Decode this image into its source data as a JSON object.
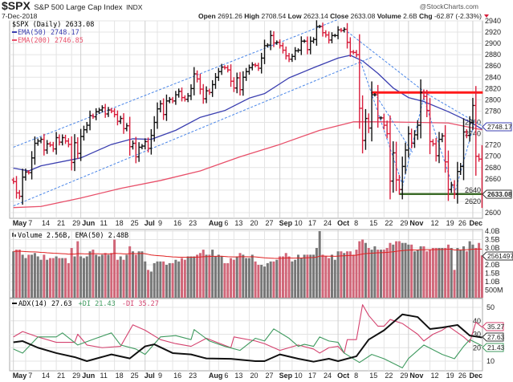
{
  "header": {
    "symbol": "$SPX",
    "name": "S&P 500 Large Cap Index",
    "exchange": "INDX",
    "date": "7-Dec-2018",
    "brand": "@StockCharts.com",
    "ohlc": [
      {
        "label": "Open",
        "value": "2691.26"
      },
      {
        "label": "High",
        "value": "2708.54"
      },
      {
        "label": "Low",
        "value": "2623.14"
      },
      {
        "label": "Close",
        "value": "2633.08"
      },
      {
        "label": "Volume",
        "value": "2.6B"
      },
      {
        "label": "Chg",
        "value": "-62.87 (-2.33%)"
      }
    ],
    "chg_icon": "down-triangle-icon"
  },
  "legend": {
    "price": "$SPX (Daily) 2633.08",
    "ema50": "EMA(50) 2748.17",
    "ema200": "EMA(200) 2746.85",
    "volume": "Volume 2.56B, EMA(50) 2.48B",
    "adx": "ADX(14) 27.63",
    "pdi": "+DI 21.43",
    "mdi": "-DI 35.27"
  },
  "markers": {
    "ema50": "2748.17",
    "close": "2633.08",
    "volume_ema": "2561497",
    "mdi": "35.27",
    "adx": "27.63",
    "pdi": "21.43"
  },
  "colors": {
    "up_bar": "#111111",
    "down_bar": "#d81e3c",
    "ema50": "#3b3fb0",
    "ema200": "#e8506a",
    "trendline": "#4a86e8",
    "resistance": "#ff1a1a",
    "support": "#3d6b2a",
    "vol_up": "#777777",
    "vol_down": "#d06678",
    "adx": "#111111",
    "pdi": "#3f9a5f",
    "mdi": "#d4426e"
  },
  "chart_data": {
    "type": "ohlc",
    "trading_days": {
      "2018-05": [
        1,
        2,
        3,
        4,
        7,
        8,
        9,
        10,
        11,
        14,
        15,
        16,
        17,
        18,
        21,
        22,
        23,
        24,
        25,
        29,
        30,
        31
      ],
      "2018-06": [
        1,
        4,
        5,
        6,
        7,
        8,
        11,
        12,
        13,
        14,
        15,
        18,
        19,
        20,
        21,
        22,
        25,
        26,
        27,
        28,
        29
      ],
      "2018-07": [
        2,
        3,
        5,
        6,
        9,
        10,
        11,
        12,
        13,
        16,
        17,
        18,
        19,
        20,
        23,
        24,
        25,
        26,
        27,
        30,
        31
      ],
      "2018-08": [
        1,
        2,
        3,
        6,
        7,
        8,
        9,
        10,
        13,
        14,
        15,
        16,
        17,
        20,
        21,
        22,
        23,
        24,
        27,
        28,
        29,
        30,
        31
      ],
      "2018-09": [
        4,
        5,
        6,
        7,
        10,
        11,
        12,
        13,
        14,
        17,
        18,
        19,
        20,
        21,
        24,
        25,
        26,
        27,
        28
      ],
      "2018-10": [
        1,
        2,
        3,
        4,
        5,
        8,
        9,
        10,
        11,
        12,
        15,
        16,
        17,
        18,
        19,
        22,
        23,
        24,
        25,
        26,
        29,
        30,
        31
      ],
      "2018-11": [
        1,
        2,
        5,
        6,
        7,
        8,
        9,
        12,
        13,
        14,
        15,
        16,
        19,
        20,
        21,
        23,
        26,
        27,
        28,
        29,
        30
      ],
      "2018-12": [
        3,
        4,
        6,
        7
      ]
    },
    "close": [
      2655,
      2635,
      2629,
      2663,
      2672,
      2671,
      2697,
      2723,
      2727,
      2730,
      2711,
      2722,
      2720,
      2713,
      2733,
      2725,
      2733,
      2727,
      2721,
      2689,
      2724,
      2705,
      2735,
      2747,
      2755,
      2772,
      2770,
      2779,
      2782,
      2786,
      2775,
      2782,
      2780,
      2774,
      2762,
      2767,
      2749,
      2754,
      2717,
      2723,
      2699,
      2716,
      2718,
      2726,
      2714,
      2737,
      2760,
      2784,
      2793,
      2774,
      2798,
      2801,
      2798,
      2809,
      2815,
      2804,
      2801,
      2807,
      2820,
      2846,
      2837,
      2819,
      2802,
      2816,
      2813,
      2827,
      2840,
      2850,
      2858,
      2857,
      2853,
      2833,
      2821,
      2839,
      2818,
      2840,
      2850,
      2857,
      2862,
      2861,
      2856,
      2874,
      2896,
      2897,
      2914,
      2901,
      2902,
      2896,
      2888,
      2878,
      2872,
      2877,
      2887,
      2888,
      2904,
      2904,
      2889,
      2904,
      2907,
      2930,
      2930,
      2919,
      2915,
      2906,
      2914,
      2914,
      2924,
      2923,
      2925,
      2902,
      2885,
      2884,
      2880,
      2785,
      2728,
      2767,
      2750,
      2809,
      2809,
      2768,
      2768,
      2755,
      2740,
      2656,
      2706,
      2658,
      2641,
      2682,
      2711,
      2740,
      2723,
      2738,
      2755,
      2813,
      2806,
      2781,
      2726,
      2722,
      2701,
      2730,
      2736,
      2690,
      2641,
      2649,
      2633,
      2673,
      2682,
      2743,
      2737,
      2760,
      2790,
      2700,
      2695,
      2633.08
    ],
    "volume_b": [
      2.8,
      2.9,
      2.9,
      2.6,
      2.4,
      2.6,
      2.6,
      2.7,
      2.5,
      2.3,
      2.6,
      2.3,
      2.4,
      2.4,
      2.5,
      2.4,
      2.4,
      2.4,
      2.1,
      3.0,
      2.5,
      3.4,
      2.5,
      2.4,
      2.5,
      2.8,
      2.9,
      2.6,
      2.5,
      2.6,
      2.7,
      2.6,
      2.7,
      3.5,
      2.3,
      2.5,
      2.3,
      2.6,
      3.1,
      2.8,
      2.6,
      2.8,
      2.8,
      2.2,
      1.7,
      1.6,
      2.1,
      2.2,
      2.2,
      2.2,
      2.0,
      2.1,
      2.1,
      2.3,
      2.2,
      2.4,
      2.3,
      2.5,
      2.5,
      2.5,
      2.6,
      2.7,
      2.9,
      2.6,
      2.6,
      2.9,
      2.5,
      2.6,
      2.5,
      2.1,
      2.1,
      2.4,
      2.3,
      2.5,
      2.7,
      2.6,
      2.4,
      2.4,
      2.6,
      2.2,
      2.0,
      2.0,
      1.9,
      2.1,
      2.2,
      2.2,
      2.3,
      2.5,
      2.5,
      2.7,
      2.5,
      2.2,
      2.3,
      2.6,
      2.4,
      2.6,
      2.6,
      2.6,
      2.6,
      3.0,
      4.0,
      2.6,
      2.5,
      2.4,
      2.6,
      2.3,
      2.8,
      2.8,
      2.7,
      2.8,
      2.8,
      2.6,
      2.9,
      3.4,
      3.5,
      3.3,
      3.0,
      2.9,
      3.1,
      2.9,
      2.9,
      2.9,
      3.0,
      3.3,
      3.2,
      3.4,
      3.4,
      3.3,
      3.3,
      3.2,
      3.2,
      2.8,
      2.9,
      3.1,
      3.1,
      2.8,
      2.9,
      3.0,
      3.0,
      3.0,
      3.0,
      3.0,
      3.2,
      3.0,
      1.7,
      3.0,
      2.9,
      3.1,
      2.8,
      3.4,
      3.2,
      3.0,
      3.3,
      2.56
    ],
    "ema50": [
      [
        "2018-05-01",
        2679
      ],
      [
        "2018-05-08",
        2674
      ],
      [
        "2018-05-14",
        2683
      ],
      [
        "2018-06-01",
        2697
      ],
      [
        "2018-06-15",
        2721
      ],
      [
        "2018-06-26",
        2731
      ],
      [
        "2018-07-05",
        2730
      ],
      [
        "2018-07-17",
        2746
      ],
      [
        "2018-07-27",
        2769
      ],
      [
        "2018-08-08",
        2781
      ],
      [
        "2018-08-20",
        2803
      ],
      [
        "2018-08-27",
        2811
      ],
      [
        "2018-09-07",
        2839
      ],
      [
        "2018-09-19",
        2857
      ],
      [
        "2018-10-01",
        2874
      ],
      [
        "2018-10-05",
        2879
      ],
      [
        "2018-10-11",
        2869
      ],
      [
        "2018-10-18",
        2847
      ],
      [
        "2018-10-25",
        2821
      ],
      [
        "2018-11-01",
        2804
      ],
      [
        "2018-11-08",
        2797
      ],
      [
        "2018-11-20",
        2779
      ],
      [
        "2018-11-30",
        2761
      ],
      [
        "2018-12-07",
        2748.17
      ]
    ],
    "ema200": [
      [
        "2018-05-01",
        2609
      ],
      [
        "2018-05-14",
        2611
      ],
      [
        "2018-06-01",
        2626
      ],
      [
        "2018-06-20",
        2643
      ],
      [
        "2018-07-10",
        2657
      ],
      [
        "2018-07-27",
        2674
      ],
      [
        "2018-08-15",
        2699
      ],
      [
        "2018-09-04",
        2721
      ],
      [
        "2018-09-21",
        2746
      ],
      [
        "2018-10-08",
        2761
      ],
      [
        "2018-10-22",
        2761
      ],
      [
        "2018-11-06",
        2760
      ],
      [
        "2018-11-20",
        2759
      ],
      [
        "2018-12-07",
        2746.85
      ]
    ],
    "trendlines": [
      {
        "kind": "channel",
        "from": [
          "2018-05-01",
          2716
        ],
        "to": [
          "2018-10-01",
          2943
        ]
      },
      {
        "kind": "channel",
        "from": [
          "2018-05-01",
          2612
        ],
        "to": [
          "2018-10-16",
          2876
        ]
      },
      {
        "kind": "channel",
        "from": [
          "2018-10-04",
          2921
        ],
        "to": [
          "2018-11-08",
          2814
        ]
      },
      {
        "kind": "channel",
        "from": [
          "2018-11-08",
          2814
        ],
        "to": [
          "2018-12-07",
          2753
        ]
      },
      {
        "kind": "channel",
        "from": [
          "2018-10-10",
          2874
        ],
        "to": [
          "2018-10-30",
          2646
        ]
      },
      {
        "kind": "channel",
        "from": [
          "2018-10-30",
          2646
        ],
        "to": [
          "2018-11-08",
          2811
        ]
      },
      {
        "kind": "channel",
        "from": [
          "2018-11-08",
          2803
        ],
        "to": [
          "2018-11-23",
          2633
        ]
      },
      {
        "kind": "channel",
        "from": [
          "2018-11-23",
          2633
        ],
        "to": [
          "2018-12-03",
          2754
        ]
      },
      {
        "kind": "channel",
        "from": [
          "2018-10-17",
          2811
        ],
        "to": [
          "2018-11-02",
          2707
        ]
      },
      {
        "kind": "resistance",
        "from": [
          "2018-10-16",
          2813
        ],
        "to": [
          "2018-12-07",
          2813
        ]
      },
      {
        "kind": "support",
        "from": [
          "2018-10-29",
          2633
        ],
        "to": [
          "2018-12-07",
          2633
        ]
      }
    ],
    "adx": [
      [
        "2018-05-01",
        24
      ],
      [
        "2018-05-04",
        24.9
      ],
      [
        "2018-05-11",
        20
      ],
      [
        "2018-05-21",
        16
      ],
      [
        "2018-05-30",
        13
      ],
      [
        "2018-06-05",
        10
      ],
      [
        "2018-06-15",
        15
      ],
      [
        "2018-06-25",
        12
      ],
      [
        "2018-07-02",
        21
      ],
      [
        "2018-07-06",
        22.5
      ],
      [
        "2018-07-16",
        16
      ],
      [
        "2018-07-24",
        15
      ],
      [
        "2018-07-31",
        12
      ],
      [
        "2018-08-10",
        11.7
      ],
      [
        "2018-08-22",
        10
      ],
      [
        "2018-08-27",
        10
      ],
      [
        "2018-09-04",
        15
      ],
      [
        "2018-09-12",
        11.8
      ],
      [
        "2018-09-19",
        9.6
      ],
      [
        "2018-09-26",
        11.8
      ],
      [
        "2018-10-01",
        10
      ],
      [
        "2018-10-09",
        13.6
      ],
      [
        "2018-10-15",
        26
      ],
      [
        "2018-10-22",
        32.9
      ],
      [
        "2018-10-30",
        44.8
      ],
      [
        "2018-11-06",
        42.8
      ],
      [
        "2018-11-12",
        33.9
      ],
      [
        "2018-11-16",
        35
      ],
      [
        "2018-11-26",
        36.9
      ],
      [
        "2018-11-30",
        29
      ],
      [
        "2018-12-07",
        27.63
      ]
    ],
    "pdi": [
      [
        "2018-05-01",
        19
      ],
      [
        "2018-05-04",
        16
      ],
      [
        "2018-05-11",
        28
      ],
      [
        "2018-05-21",
        28
      ],
      [
        "2018-05-23",
        31
      ],
      [
        "2018-05-31",
        22
      ],
      [
        "2018-06-08",
        27
      ],
      [
        "2018-06-15",
        31
      ],
      [
        "2018-06-20",
        22
      ],
      [
        "2018-06-27",
        19
      ],
      [
        "2018-07-02",
        15
      ],
      [
        "2018-07-10",
        28
      ],
      [
        "2018-07-17",
        29
      ],
      [
        "2018-07-24",
        26
      ],
      [
        "2018-07-25",
        33.5
      ],
      [
        "2018-08-01",
        25
      ],
      [
        "2018-08-08",
        21
      ],
      [
        "2018-08-15",
        18
      ],
      [
        "2018-08-22",
        27
      ],
      [
        "2018-08-27",
        25
      ],
      [
        "2018-08-30",
        34
      ],
      [
        "2018-09-07",
        27
      ],
      [
        "2018-09-12",
        21
      ],
      [
        "2018-09-14",
        22.5
      ],
      [
        "2018-09-19",
        21
      ],
      [
        "2018-09-21",
        28
      ],
      [
        "2018-09-26",
        25
      ],
      [
        "2018-10-01",
        24
      ],
      [
        "2018-10-03",
        16
      ],
      [
        "2018-10-10",
        9
      ],
      [
        "2018-10-16",
        15
      ],
      [
        "2018-10-22",
        11.8
      ],
      [
        "2018-10-30",
        5
      ],
      [
        "2018-11-01",
        12
      ],
      [
        "2018-11-08",
        22
      ],
      [
        "2018-11-16",
        15
      ],
      [
        "2018-11-23",
        11.8
      ],
      [
        "2018-11-28",
        21
      ],
      [
        "2018-11-30",
        26
      ],
      [
        "2018-12-07",
        21.43
      ]
    ],
    "mdi": [
      [
        "2018-05-01",
        28
      ],
      [
        "2018-05-04",
        32
      ],
      [
        "2018-05-11",
        28
      ],
      [
        "2018-05-21",
        24
      ],
      [
        "2018-05-30",
        24
      ],
      [
        "2018-05-31",
        30
      ],
      [
        "2018-06-05",
        22
      ],
      [
        "2018-06-12",
        20
      ],
      [
        "2018-06-20",
        21
      ],
      [
        "2018-06-26",
        37
      ],
      [
        "2018-07-02",
        33
      ],
      [
        "2018-07-10",
        26
      ],
      [
        "2018-07-17",
        23
      ],
      [
        "2018-07-24",
        21
      ],
      [
        "2018-07-31",
        27
      ],
      [
        "2018-08-10",
        20
      ],
      [
        "2018-08-13",
        28
      ],
      [
        "2018-08-22",
        25
      ],
      [
        "2018-08-27",
        23
      ],
      [
        "2018-09-04",
        18
      ],
      [
        "2018-09-12",
        22
      ],
      [
        "2018-09-19",
        19
      ],
      [
        "2018-09-21",
        16
      ],
      [
        "2018-09-26",
        20
      ],
      [
        "2018-10-01",
        21
      ],
      [
        "2018-10-03",
        16
      ],
      [
        "2018-10-04",
        26
      ],
      [
        "2018-10-09",
        26
      ],
      [
        "2018-10-11",
        52
      ],
      [
        "2018-10-15",
        44
      ],
      [
        "2018-10-18",
        36
      ],
      [
        "2018-10-22",
        36
      ],
      [
        "2018-10-24",
        41
      ],
      [
        "2018-10-30",
        38
      ],
      [
        "2018-11-06",
        30
      ],
      [
        "2018-11-08",
        25
      ],
      [
        "2018-11-13",
        30
      ],
      [
        "2018-11-16",
        33
      ],
      [
        "2018-11-20",
        36
      ],
      [
        "2018-11-28",
        28
      ],
      [
        "2018-11-30",
        24
      ],
      [
        "2018-12-04",
        39
      ],
      [
        "2018-12-07",
        35.27
      ]
    ],
    "price_axis": {
      "min": 2600,
      "max": 2940,
      "step": 20
    },
    "volume_axis": {
      "labels": [
        "4.0B",
        "3.5B",
        "3.0B",
        "2.0B",
        "1.5B",
        "1.0B",
        "500M"
      ],
      "values": [
        4.0,
        3.5,
        3.0,
        2.0,
        1.5,
        1.0,
        0.5
      ]
    },
    "adx_axis": {
      "labels": [
        "50",
        "40",
        "30",
        "20",
        "10"
      ],
      "values": [
        50,
        40,
        30,
        20,
        10
      ]
    },
    "x_ticks": [
      {
        "date": "2018-05-01",
        "label": "May",
        "major": true
      },
      {
        "date": "2018-05-07",
        "label": "7"
      },
      {
        "date": "2018-05-14",
        "label": "14"
      },
      {
        "date": "2018-05-21",
        "label": "21"
      },
      {
        "date": "2018-05-29",
        "label": "29"
      },
      {
        "date": "2018-06-01",
        "label": "Jun",
        "major": true
      },
      {
        "date": "2018-06-11",
        "label": "11"
      },
      {
        "date": "2018-06-18",
        "label": "18"
      },
      {
        "date": "2018-06-25",
        "label": "25"
      },
      {
        "date": "2018-07-02",
        "label": "Jul",
        "major": true
      },
      {
        "date": "2018-07-09",
        "label": "9"
      },
      {
        "date": "2018-07-16",
        "label": "16"
      },
      {
        "date": "2018-07-23",
        "label": "23"
      },
      {
        "date": "2018-08-01",
        "label": "Aug",
        "major": true
      },
      {
        "date": "2018-08-06",
        "label": "6"
      },
      {
        "date": "2018-08-13",
        "label": "13"
      },
      {
        "date": "2018-08-20",
        "label": "20"
      },
      {
        "date": "2018-08-27",
        "label": "27"
      },
      {
        "date": "2018-09-04",
        "label": "Sep",
        "major": true
      },
      {
        "date": "2018-09-10",
        "label": "10"
      },
      {
        "date": "2018-09-17",
        "label": "17"
      },
      {
        "date": "2018-09-24",
        "label": "24"
      },
      {
        "date": "2018-10-01",
        "label": "Oct",
        "major": true
      },
      {
        "date": "2018-10-08",
        "label": "8"
      },
      {
        "date": "2018-10-15",
        "label": "15"
      },
      {
        "date": "2018-10-22",
        "label": "22"
      },
      {
        "date": "2018-10-29",
        "label": "29"
      },
      {
        "date": "2018-11-01",
        "label": "Nov",
        "major": true
      },
      {
        "date": "2018-11-12",
        "label": "12"
      },
      {
        "date": "2018-11-19",
        "label": "19"
      },
      {
        "date": "2018-11-26",
        "label": "26"
      },
      {
        "date": "2018-12-03",
        "label": "Dec",
        "major": true
      }
    ]
  }
}
